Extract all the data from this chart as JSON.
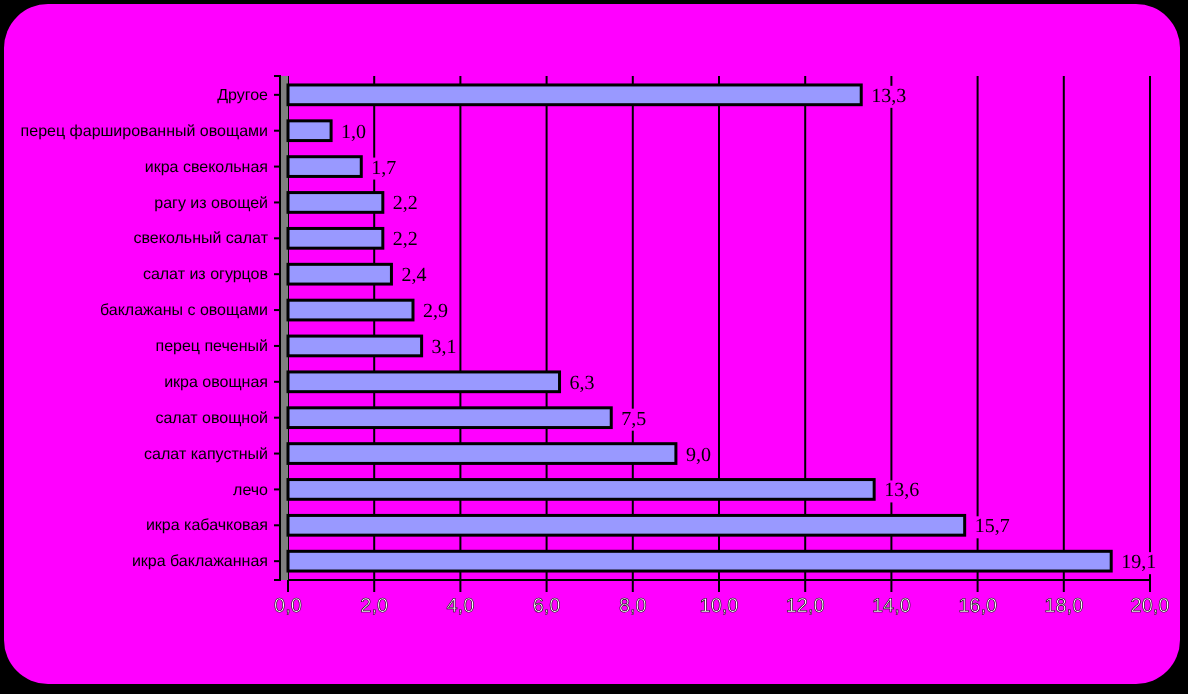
{
  "chart_data": {
    "type": "bar",
    "orientation": "horizontal",
    "categories": [
      "Другое",
      "перец фаршированный овощами",
      "икра свекольная",
      "рагу из овощей",
      "свекольный салат",
      "салат из огурцов",
      "баклажаны с овощами",
      "перец печеный",
      "икра овощная",
      "салат овощной",
      "салат капустный",
      "лечо",
      "икра кабачковая",
      "икра баклажанная"
    ],
    "values": [
      13.3,
      1.0,
      1.7,
      2.2,
      2.2,
      2.4,
      2.9,
      3.1,
      6.3,
      7.5,
      9.0,
      13.6,
      15.7,
      19.1
    ],
    "value_labels": [
      "13,3",
      "1,0",
      "1,7",
      "2,2",
      "2,2",
      "2,4",
      "2,9",
      "3,1",
      "6,3",
      "7,5",
      "9,0",
      "13,6",
      "15,7",
      "19,1"
    ],
    "color": "#9999ff",
    "xlim": [
      0,
      20
    ],
    "xticks": [
      {
        "value": 0,
        "label": "0,0"
      },
      {
        "value": 2,
        "label": "2,0"
      },
      {
        "value": 4,
        "label": "4,0"
      },
      {
        "value": 6,
        "label": "6,0"
      },
      {
        "value": 8,
        "label": "8,0"
      },
      {
        "value": 10,
        "label": "10,0"
      },
      {
        "value": 12,
        "label": "12,0"
      },
      {
        "value": 14,
        "label": "14,0"
      },
      {
        "value": 16,
        "label": "16,0"
      },
      {
        "value": 18,
        "label": "18,0"
      },
      {
        "value": 20,
        "label": "20,0"
      }
    ],
    "grid": "x"
  }
}
